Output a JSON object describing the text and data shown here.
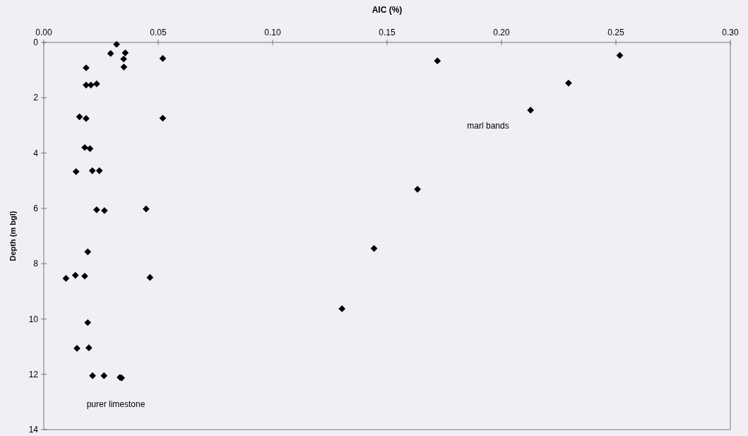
{
  "chart_data": {
    "type": "scatter",
    "xlabel": "AIC (%)",
    "ylabel": "Depth (m bgl)",
    "x": [
      0.0318,
      0.0292,
      0.0356,
      0.0349,
      0.052,
      0.035,
      0.0185,
      0.0185,
      0.0206,
      0.0231,
      0.0156,
      0.0185,
      0.052,
      0.0179,
      0.0202,
      0.0141,
      0.0212,
      0.0243,
      0.0231,
      0.0265,
      0.0447,
      0.0192,
      0.0097,
      0.0138,
      0.0179,
      0.0464,
      0.0192,
      0.0145,
      0.0197,
      0.0213,
      0.0263,
      0.0333,
      0.034,
      0.2517,
      0.172,
      0.2293,
      0.2127,
      0.1633,
      0.1443,
      0.1303
    ],
    "series": [
      {
        "color": "#000000",
        "values": [
          0.07,
          0.4,
          0.38,
          0.6,
          0.58,
          0.89,
          0.92,
          1.54,
          1.54,
          1.5,
          2.69,
          2.75,
          2.74,
          3.8,
          3.84,
          4.67,
          4.64,
          4.64,
          6.05,
          6.08,
          6.02,
          7.57,
          8.53,
          8.42,
          8.45,
          8.5,
          10.13,
          11.06,
          11.04,
          12.05,
          12.05,
          12.11,
          12.13,
          0.47,
          0.67,
          1.47,
          2.45,
          5.31,
          7.45,
          9.63
        ]
      }
    ],
    "xlim": [
      0,
      0.3
    ],
    "xticks": [
      {
        "value": 0,
        "label": "0.00"
      },
      {
        "value": 0.05,
        "label": "0.05"
      },
      {
        "value": 0.1,
        "label": "0.10"
      },
      {
        "value": 0.15,
        "label": "0.15"
      },
      {
        "value": 0.2,
        "label": "0.20"
      },
      {
        "value": 0.25,
        "label": "0.25"
      },
      {
        "value": 0.3,
        "label": "0.30"
      }
    ],
    "ylim": [
      14,
      0
    ],
    "yticks": [
      0,
      2,
      4,
      6,
      8,
      10,
      12,
      14
    ],
    "marker": "diamond",
    "grid": false,
    "annotations": [
      "marl bands",
      "purer limestone"
    ]
  }
}
